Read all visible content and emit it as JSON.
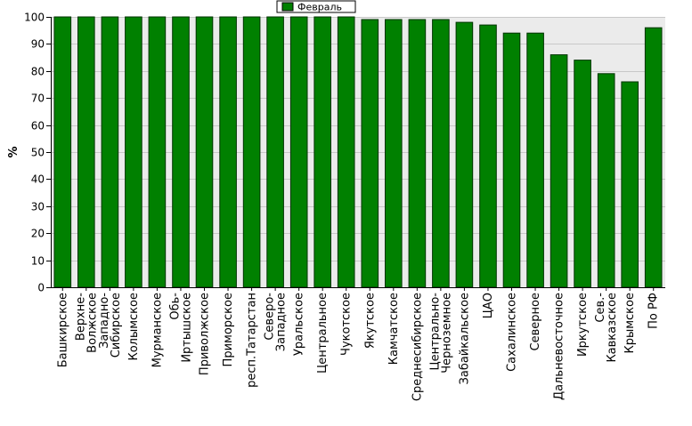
{
  "chart_data": {
    "type": "bar",
    "title": "",
    "xlabel": "",
    "ylabel": "%",
    "ylim": [
      0,
      100
    ],
    "yticks": [
      0,
      10,
      20,
      30,
      40,
      50,
      60,
      70,
      80,
      90,
      100
    ],
    "grid": true,
    "legend_position": "top-center",
    "categories": [
      "Башкирское",
      "Верхне-Волжское",
      "Западно-Сибирское",
      "Колымское",
      "Мурманское",
      "Обь-Иртышское",
      "Приволжское",
      "Приморское",
      "респ.Татарстан",
      "Северо-Западное",
      "Уральское",
      "Центральное",
      "Чукотское",
      "Якутское",
      "Камчатское",
      "Среднесибирское",
      "Центрально-Черноземное",
      "Забайкальское",
      "ЦАО",
      "Сахалинское",
      "Северное",
      "Дальневосточное",
      "Иркутское",
      "Сев.-Кавказское",
      "Крымское",
      "По РФ"
    ],
    "series": [
      {
        "name": "Февраль",
        "color": "#008000",
        "values": [
          100,
          100,
          100,
          100,
          100,
          100,
          100,
          100,
          100,
          100,
          100,
          100,
          100,
          99,
          99,
          99,
          99,
          98,
          97,
          94,
          94,
          86,
          84,
          79,
          76,
          96
        ]
      }
    ]
  }
}
